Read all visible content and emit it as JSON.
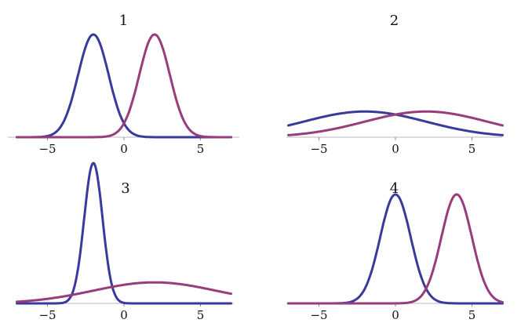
{
  "colors": {
    "series_a": "#3a3a9c",
    "series_b": "#973d7b"
  },
  "chart_data": [
    {
      "type": "line",
      "title": "1",
      "xlim": [
        -7,
        7
      ],
      "ylim": [
        0,
        0.42
      ],
      "xticks": [
        -5,
        0,
        5
      ],
      "xtick_labels": [
        "−5",
        "0",
        "5"
      ],
      "grid": false,
      "series": [
        {
          "kind": "normal-pdf",
          "mean": -2,
          "sd": 1,
          "color": "#3a3a9c"
        },
        {
          "kind": "normal-pdf",
          "mean": 2,
          "sd": 1,
          "color": "#973d7b"
        }
      ]
    },
    {
      "type": "line",
      "title": "2",
      "xlim": [
        -7,
        7
      ],
      "ylim": [
        0,
        0.42
      ],
      "xticks": [
        -5,
        0,
        5
      ],
      "xtick_labels": [
        "−5",
        "0",
        "5"
      ],
      "grid": false,
      "series": [
        {
          "kind": "normal-pdf",
          "mean": -2,
          "sd": 4,
          "color": "#3a3a9c"
        },
        {
          "kind": "normal-pdf",
          "mean": 2,
          "sd": 4,
          "color": "#973d7b"
        }
      ]
    },
    {
      "type": "line",
      "title": "3",
      "xlim": [
        -7,
        7
      ],
      "ylim": [
        0,
        0.42
      ],
      "xticks": [
        -5,
        0,
        5
      ],
      "xtick_labels": [
        "−5",
        "0",
        "5"
      ],
      "grid": false,
      "series": [
        {
          "kind": "normal-pdf",
          "mean": -2,
          "sd": 0.6,
          "color": "#3a3a9c"
        },
        {
          "kind": "normal-pdf",
          "mean": 2,
          "sd": 4,
          "color": "#973d7b"
        }
      ]
    },
    {
      "type": "line",
      "title": "4",
      "xlim": [
        -7,
        7
      ],
      "ylim": [
        0,
        0.42
      ],
      "xticks": [
        -5,
        0,
        5
      ],
      "xtick_labels": [
        "−5",
        "0",
        "5"
      ],
      "grid": false,
      "series": [
        {
          "kind": "normal-pdf",
          "mean": 0,
          "sd": 1,
          "color": "#3a3a9c"
        },
        {
          "kind": "normal-pdf",
          "mean": 4,
          "sd": 1,
          "color": "#973d7b"
        }
      ]
    }
  ]
}
